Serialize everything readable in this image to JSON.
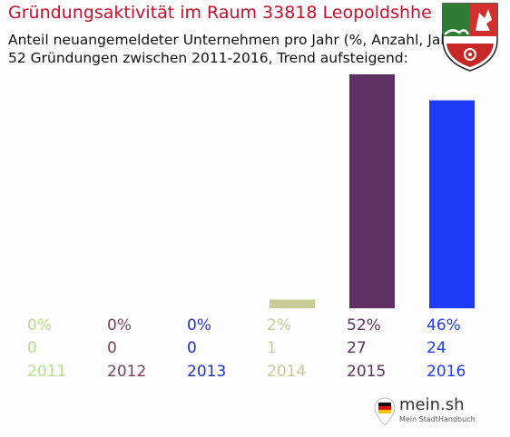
{
  "header": {
    "title": "Gründungsaktivität im Raum 33818 Leopoldshhe",
    "subtitle_line1": "Anteil neuangemeldeter Unternehmen pro Jahr (%, Anzahl, Jahr)",
    "subtitle_line2": "52 Gründungen zwischen 2011-2016, Trend aufsteigend:"
  },
  "crest": {
    "icon": "nrw-coat-of-arms-icon"
  },
  "logo": {
    "name": "mein.sh",
    "tagline": "Mein StadtHandbuch",
    "icon": "location-pin-icon"
  },
  "chart_data": {
    "type": "bar",
    "categories": [
      "2011",
      "2012",
      "2013",
      "2014",
      "2015",
      "2016"
    ],
    "percent_labels": [
      "0%",
      "0%",
      "0%",
      "2%",
      "52%",
      "46%"
    ],
    "values": [
      0,
      0,
      0,
      1,
      27,
      24
    ],
    "colors": [
      "#b5e28a",
      "#7a3f5c",
      "#2233cc",
      "#c9cc96",
      "#5e3063",
      "#1f3bf5"
    ],
    "ylim": [
      0,
      27
    ]
  }
}
